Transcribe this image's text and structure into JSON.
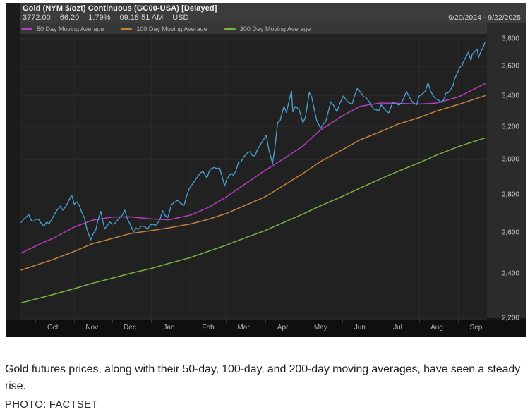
{
  "header": {
    "title": "Gold (NYM $/ozt) Continuous (GC00-USA) [Delayed]",
    "quote": {
      "last": "3772.00",
      "change": "66.20",
      "change_pct": "1.79%",
      "time": "09:18:51 AM",
      "currency": "USD"
    },
    "date_range": "9/20/2024 - 9/22/2025"
  },
  "legend": [
    {
      "label": "50 Day Moving Average",
      "color": "#b43cbe"
    },
    {
      "label": "100 Day Moving Average",
      "color": "#c2823f"
    },
    {
      "label": "200 Day Moving Average",
      "color": "#79b441"
    }
  ],
  "chart_data": {
    "type": "line",
    "title": "Gold (NYM $/ozt) Continuous (GC00-USA) [Delayed]",
    "date_range": "9/20/2024 - 9/22/2025",
    "y_scale": "log",
    "ylim": [
      2200,
      3800
    ],
    "grid": true,
    "legend_position": "top-left",
    "y_ticks": [
      3800,
      3600,
      3400,
      3200,
      3000,
      2800,
      2600,
      2400,
      2200
    ],
    "y_tick_labels": [
      "3,800",
      "3,600",
      "3,400",
      "3,200",
      "3,000",
      "2,800",
      "2,600",
      "2,400",
      "2,200"
    ],
    "x_tick_labels": [
      "Oct",
      "Nov",
      "Dec",
      "Jan",
      "Feb",
      "Mar",
      "Apr",
      "May",
      "Jun",
      "Jul",
      "Aug",
      "Sep"
    ],
    "x_label_days": [
      25,
      56,
      86,
      117,
      148,
      176,
      207,
      237,
      268,
      298,
      329,
      360
    ],
    "x_gridline_days": [
      11,
      42,
      72,
      103,
      134,
      162,
      193,
      223,
      254,
      284,
      315,
      346
    ],
    "x_total_days": 367,
    "series": [
      {
        "name": "Price",
        "color": "#4aa3d4",
        "width": 1.3,
        "points": [
          [
            0,
            2655
          ],
          [
            2,
            2670
          ],
          [
            4,
            2682
          ],
          [
            6,
            2695
          ],
          [
            8,
            2665
          ],
          [
            10,
            2660
          ],
          [
            12,
            2672
          ],
          [
            14,
            2668
          ],
          [
            16,
            2648
          ],
          [
            18,
            2635
          ],
          [
            20,
            2655
          ],
          [
            22,
            2648
          ],
          [
            24,
            2668
          ],
          [
            26,
            2692
          ],
          [
            28,
            2715
          ],
          [
            31,
            2740
          ],
          [
            33,
            2718
          ],
          [
            36,
            2745
          ],
          [
            38,
            2775
          ],
          [
            40,
            2800
          ],
          [
            42,
            2750
          ],
          [
            44,
            2762
          ],
          [
            46,
            2745
          ],
          [
            48,
            2705
          ],
          [
            50,
            2680
          ],
          [
            52,
            2620
          ],
          [
            55,
            2565
          ],
          [
            57,
            2595
          ],
          [
            59,
            2615
          ],
          [
            61,
            2670
          ],
          [
            63,
            2712
          ],
          [
            66,
            2620
          ],
          [
            68,
            2635
          ],
          [
            70,
            2657
          ],
          [
            72,
            2645
          ],
          [
            74,
            2648
          ],
          [
            77,
            2672
          ],
          [
            80,
            2692
          ],
          [
            82,
            2718
          ],
          [
            84,
            2672
          ],
          [
            86,
            2648
          ],
          [
            89,
            2605
          ],
          [
            91,
            2625
          ],
          [
            93,
            2618
          ],
          [
            95,
            2635
          ],
          [
            98,
            2632
          ],
          [
            100,
            2618
          ],
          [
            102,
            2640
          ],
          [
            104,
            2645
          ],
          [
            106,
            2638
          ],
          [
            108,
            2650
          ],
          [
            110,
            2672
          ],
          [
            112,
            2715
          ],
          [
            114,
            2690
          ],
          [
            116,
            2680
          ],
          [
            119,
            2748
          ],
          [
            121,
            2760
          ],
          [
            124,
            2772
          ],
          [
            126,
            2755
          ],
          [
            129,
            2745
          ],
          [
            131,
            2795
          ],
          [
            133,
            2835
          ],
          [
            135,
            2855
          ],
          [
            138,
            2885
          ],
          [
            140,
            2905
          ],
          [
            142,
            2925
          ],
          [
            144,
            2932
          ],
          [
            147,
            2895
          ],
          [
            149,
            2935
          ],
          [
            151,
            2950
          ],
          [
            153,
            2955
          ],
          [
            155,
            2948
          ],
          [
            157,
            2952
          ],
          [
            159,
            2905
          ],
          [
            161,
            2850
          ],
          [
            163,
            2890
          ],
          [
            166,
            2920
          ],
          [
            168,
            2910
          ],
          [
            170,
            2935
          ],
          [
            172,
            2985
          ],
          [
            174,
            2988
          ],
          [
            176,
            3015
          ],
          [
            179,
            3040
          ],
          [
            181,
            3048
          ],
          [
            183,
            3025
          ],
          [
            185,
            3022
          ],
          [
            187,
            3060
          ],
          [
            189,
            3085
          ],
          [
            192,
            3122
          ],
          [
            194,
            3148
          ],
          [
            196,
            3060
          ],
          [
            199,
            2978
          ],
          [
            201,
            3080
          ],
          [
            203,
            3225
          ],
          [
            205,
            3240
          ],
          [
            208,
            3330
          ],
          [
            210,
            3290
          ],
          [
            212,
            3365
          ],
          [
            214,
            3430
          ],
          [
            215,
            3295
          ],
          [
            217,
            3330
          ],
          [
            220,
            3310
          ],
          [
            223,
            3225
          ],
          [
            225,
            3260
          ],
          [
            228,
            3422
          ],
          [
            230,
            3390
          ],
          [
            232,
            3310
          ],
          [
            234,
            3238
          ],
          [
            237,
            3190
          ],
          [
            239,
            3215
          ],
          [
            241,
            3232
          ],
          [
            243,
            3292
          ],
          [
            245,
            3360
          ],
          [
            247,
            3340
          ],
          [
            250,
            3295
          ],
          [
            252,
            3345
          ],
          [
            255,
            3398
          ],
          [
            257,
            3375
          ],
          [
            259,
            3355
          ],
          [
            262,
            3345
          ],
          [
            264,
            3402
          ],
          [
            266,
            3448
          ],
          [
            268,
            3430
          ],
          [
            269,
            3418
          ],
          [
            271,
            3395
          ],
          [
            273,
            3388
          ],
          [
            275,
            3365
          ],
          [
            277,
            3338
          ],
          [
            279,
            3312
          ],
          [
            281,
            3308
          ],
          [
            283,
            3300
          ],
          [
            285,
            3340
          ],
          [
            287,
            3320
          ],
          [
            289,
            3298
          ],
          [
            291,
            3288
          ],
          [
            294,
            3355
          ],
          [
            296,
            3350
          ],
          [
            298,
            3342
          ],
          [
            299,
            3338
          ],
          [
            301,
            3350
          ],
          [
            303,
            3388
          ],
          [
            305,
            3428
          ],
          [
            307,
            3395
          ],
          [
            308,
            3380
          ],
          [
            310,
            3355
          ],
          [
            313,
            3340
          ],
          [
            315,
            3398
          ],
          [
            317,
            3408
          ],
          [
            320,
            3432
          ],
          [
            322,
            3488
          ],
          [
            324,
            3432
          ],
          [
            326,
            3402
          ],
          [
            328,
            3380
          ],
          [
            330,
            3372
          ],
          [
            333,
            3355
          ],
          [
            335,
            3382
          ],
          [
            336,
            3415
          ],
          [
            338,
            3420
          ],
          [
            340,
            3442
          ],
          [
            342,
            3470
          ],
          [
            343,
            3512
          ],
          [
            345,
            3548
          ],
          [
            347,
            3592
          ],
          [
            349,
            3608
          ],
          [
            351,
            3652
          ],
          [
            353,
            3682
          ],
          [
            354,
            3702
          ],
          [
            356,
            3642
          ],
          [
            357,
            3688
          ],
          [
            359,
            3705
          ],
          [
            361,
            3722
          ],
          [
            362,
            3662
          ],
          [
            364,
            3708
          ],
          [
            366,
            3745
          ],
          [
            367,
            3772
          ]
        ]
      },
      {
        "name": "50 Day Moving Average",
        "color": "#b43cbe",
        "width": 1.5,
        "points": [
          [
            0,
            2500
          ],
          [
            15,
            2545
          ],
          [
            25,
            2572
          ],
          [
            42,
            2630
          ],
          [
            56,
            2665
          ],
          [
            72,
            2682
          ],
          [
            86,
            2683
          ],
          [
            103,
            2672
          ],
          [
            117,
            2668
          ],
          [
            134,
            2692
          ],
          [
            148,
            2732
          ],
          [
            162,
            2788
          ],
          [
            176,
            2855
          ],
          [
            193,
            2938
          ],
          [
            207,
            3002
          ],
          [
            223,
            3082
          ],
          [
            237,
            3180
          ],
          [
            254,
            3268
          ],
          [
            268,
            3330
          ],
          [
            284,
            3352
          ],
          [
            298,
            3350
          ],
          [
            315,
            3345
          ],
          [
            329,
            3352
          ],
          [
            346,
            3392
          ],
          [
            357,
            3438
          ],
          [
            367,
            3480
          ]
        ]
      },
      {
        "name": "100 Day Moving Average",
        "color": "#c2823f",
        "width": 1.5,
        "points": [
          [
            0,
            2418
          ],
          [
            25,
            2468
          ],
          [
            42,
            2508
          ],
          [
            56,
            2545
          ],
          [
            72,
            2572
          ],
          [
            86,
            2596
          ],
          [
            103,
            2612
          ],
          [
            117,
            2626
          ],
          [
            134,
            2646
          ],
          [
            148,
            2670
          ],
          [
            162,
            2700
          ],
          [
            176,
            2740
          ],
          [
            193,
            2790
          ],
          [
            207,
            2850
          ],
          [
            223,
            2920
          ],
          [
            237,
            2990
          ],
          [
            254,
            3058
          ],
          [
            268,
            3118
          ],
          [
            284,
            3168
          ],
          [
            298,
            3215
          ],
          [
            315,
            3258
          ],
          [
            329,
            3300
          ],
          [
            346,
            3342
          ],
          [
            367,
            3400
          ]
        ]
      },
      {
        "name": "200 Day Moving Average",
        "color": "#79b441",
        "width": 1.5,
        "points": [
          [
            0,
            2268
          ],
          [
            25,
            2305
          ],
          [
            42,
            2332
          ],
          [
            56,
            2356
          ],
          [
            72,
            2380
          ],
          [
            86,
            2402
          ],
          [
            103,
            2426
          ],
          [
            117,
            2450
          ],
          [
            134,
            2478
          ],
          [
            148,
            2508
          ],
          [
            162,
            2538
          ],
          [
            176,
            2572
          ],
          [
            193,
            2612
          ],
          [
            207,
            2652
          ],
          [
            223,
            2698
          ],
          [
            237,
            2742
          ],
          [
            254,
            2792
          ],
          [
            268,
            2838
          ],
          [
            284,
            2888
          ],
          [
            298,
            2932
          ],
          [
            315,
            2982
          ],
          [
            329,
            3028
          ],
          [
            346,
            3078
          ],
          [
            367,
            3130
          ]
        ]
      }
    ]
  },
  "caption": {
    "text": "Gold futures prices, along with their 50-day, 100-day, and 200-day moving averages, have seen a steady rise.",
    "credit": "PHOTO: FACTSET"
  }
}
